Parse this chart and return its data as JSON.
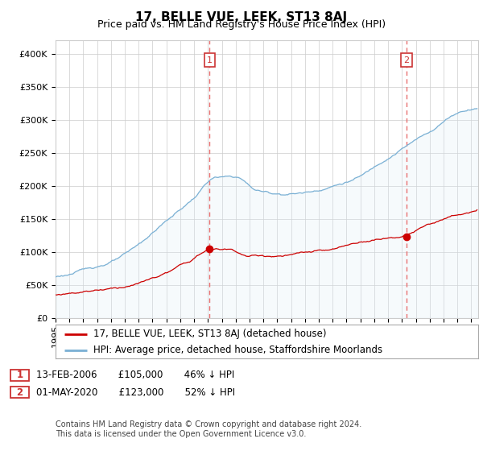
{
  "title": "17, BELLE VUE, LEEK, ST13 8AJ",
  "subtitle": "Price paid vs. HM Land Registry's House Price Index (HPI)",
  "ylim": [
    0,
    420000
  ],
  "yticks": [
    0,
    50000,
    100000,
    150000,
    200000,
    250000,
    300000,
    350000,
    400000
  ],
  "ytick_labels": [
    "£0",
    "£50K",
    "£100K",
    "£150K",
    "£200K",
    "£250K",
    "£300K",
    "£350K",
    "£400K"
  ],
  "x_start_year": 1995.0,
  "x_end_year": 2025.5,
  "sale1_date": 2006.12,
  "sale1_price": 105000,
  "sale1_label": "1",
  "sale1_info": "13-FEB-2006       £105,000       46% ↓ HPI",
  "sale2_date": 2020.33,
  "sale2_price": 123000,
  "sale2_label": "2",
  "sale2_info": "01-MAY-2020       £123,000       52% ↓ HPI",
  "legend_line1": "17, BELLE VUE, LEEK, ST13 8AJ (detached house)",
  "legend_line2": "HPI: Average price, detached house, Staffordshire Moorlands",
  "footnote": "Contains HM Land Registry data © Crown copyright and database right 2024.\nThis data is licensed under the Open Government Licence v3.0.",
  "sale_color": "#cc0000",
  "hpi_color": "#7ab0d4",
  "hpi_fill": "#ddeef7",
  "vline_color": "#e87070",
  "grid_color": "#cccccc",
  "background_color": "#ffffff",
  "marker_color": "#cc0000",
  "box_color": "#cc3333",
  "title_fontsize": 11,
  "subtitle_fontsize": 9,
  "tick_fontsize": 8,
  "legend_fontsize": 8.5,
  "footnote_fontsize": 7
}
